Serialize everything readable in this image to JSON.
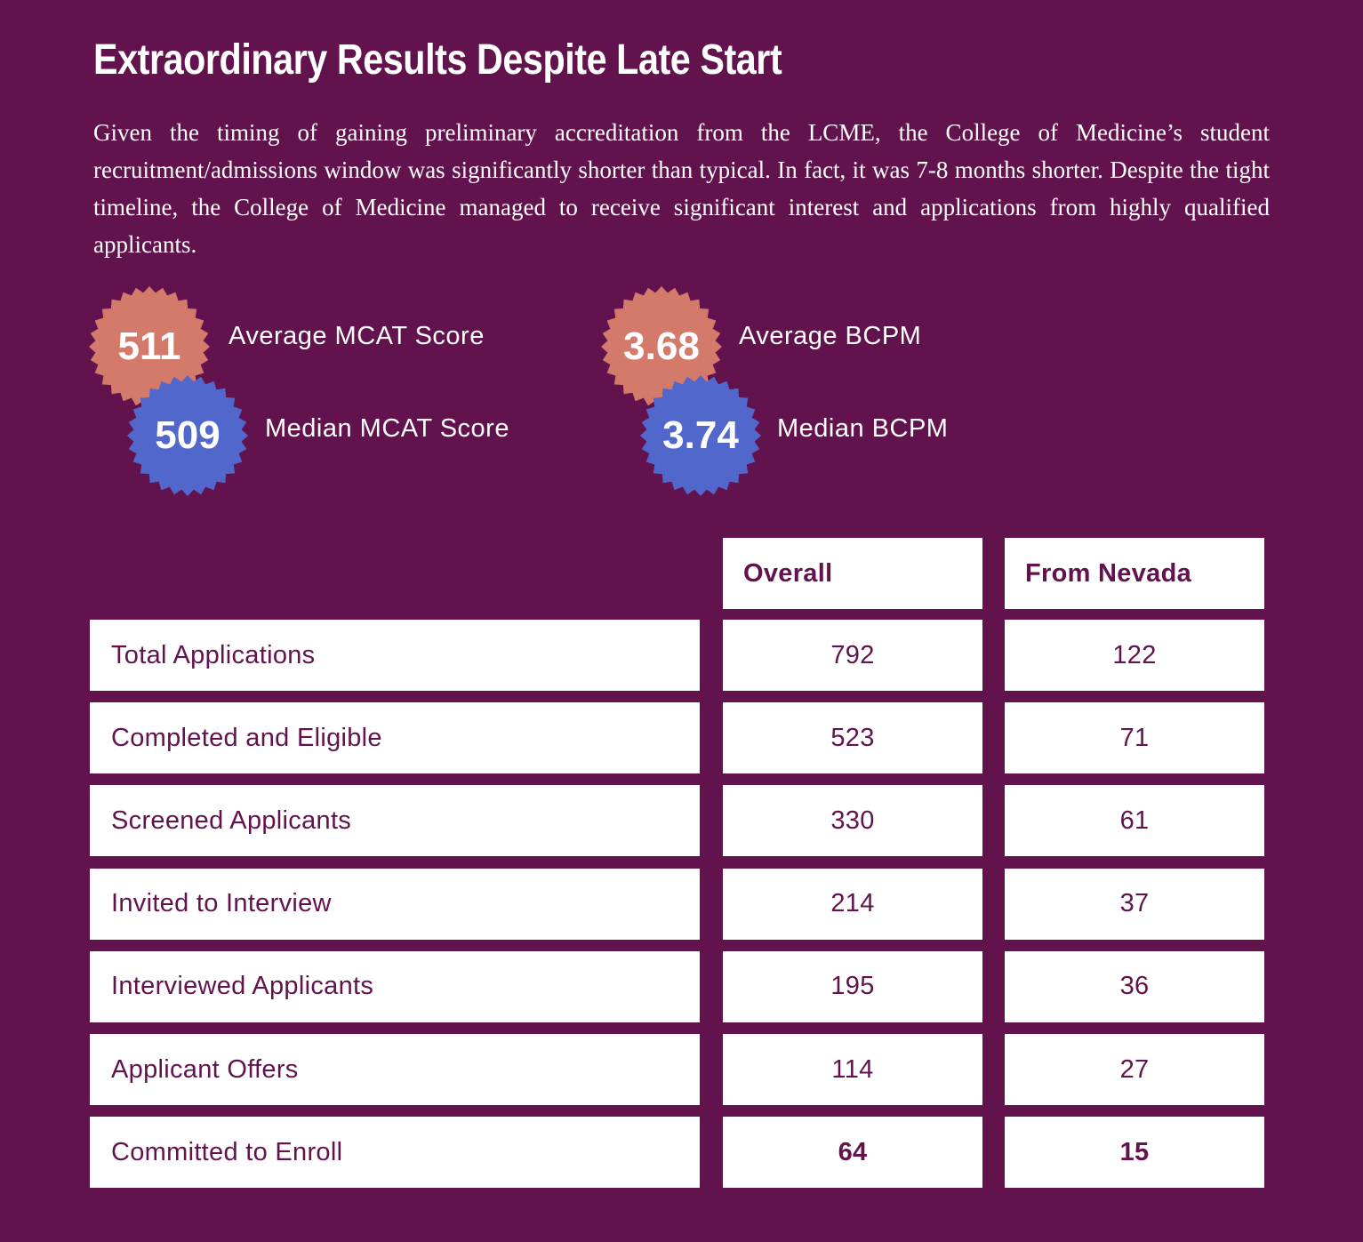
{
  "title": "Extraordinary Results Despite Late Start",
  "intro": "Given the timing of gaining preliminary accreditation from the LCME, the College of Medicine’s student recruitment/admissions window was significantly shorter than typical. In fact, it was 7-8 months shorter. Despite the tight timeline, the College of Medicine managed to receive significant interest and applications from highly qualified applicants.",
  "colors": {
    "background": "#62134d",
    "average_badge": "#d47a6a",
    "median_badge": "#5267cc",
    "table_cell": "#ffffff"
  },
  "stats": [
    {
      "value": "511",
      "label": "Average MCAT Score",
      "kind": "average"
    },
    {
      "value": "509",
      "label": "Median MCAT Score",
      "kind": "median"
    },
    {
      "value": "3.68",
      "label": "Average BCPM",
      "kind": "average"
    },
    {
      "value": "3.74",
      "label": "Median BCPM",
      "kind": "median"
    }
  ],
  "table": {
    "headers": [
      "Overall",
      "From Nevada"
    ],
    "rows": [
      {
        "label": "Total Applications",
        "overall": "792",
        "nevada": "122"
      },
      {
        "label": "Completed and Eligible",
        "overall": "523",
        "nevada": "71"
      },
      {
        "label": "Screened Applicants",
        "overall": "330",
        "nevada": "61"
      },
      {
        "label": "Invited to Interview",
        "overall": "214",
        "nevada": "37"
      },
      {
        "label": "Interviewed Applicants",
        "overall": "195",
        "nevada": "36"
      },
      {
        "label": "Applicant Offers",
        "overall": "114",
        "nevada": "27"
      },
      {
        "label": "Committed to Enroll",
        "overall": "64",
        "nevada": "15",
        "bold": true
      }
    ]
  }
}
